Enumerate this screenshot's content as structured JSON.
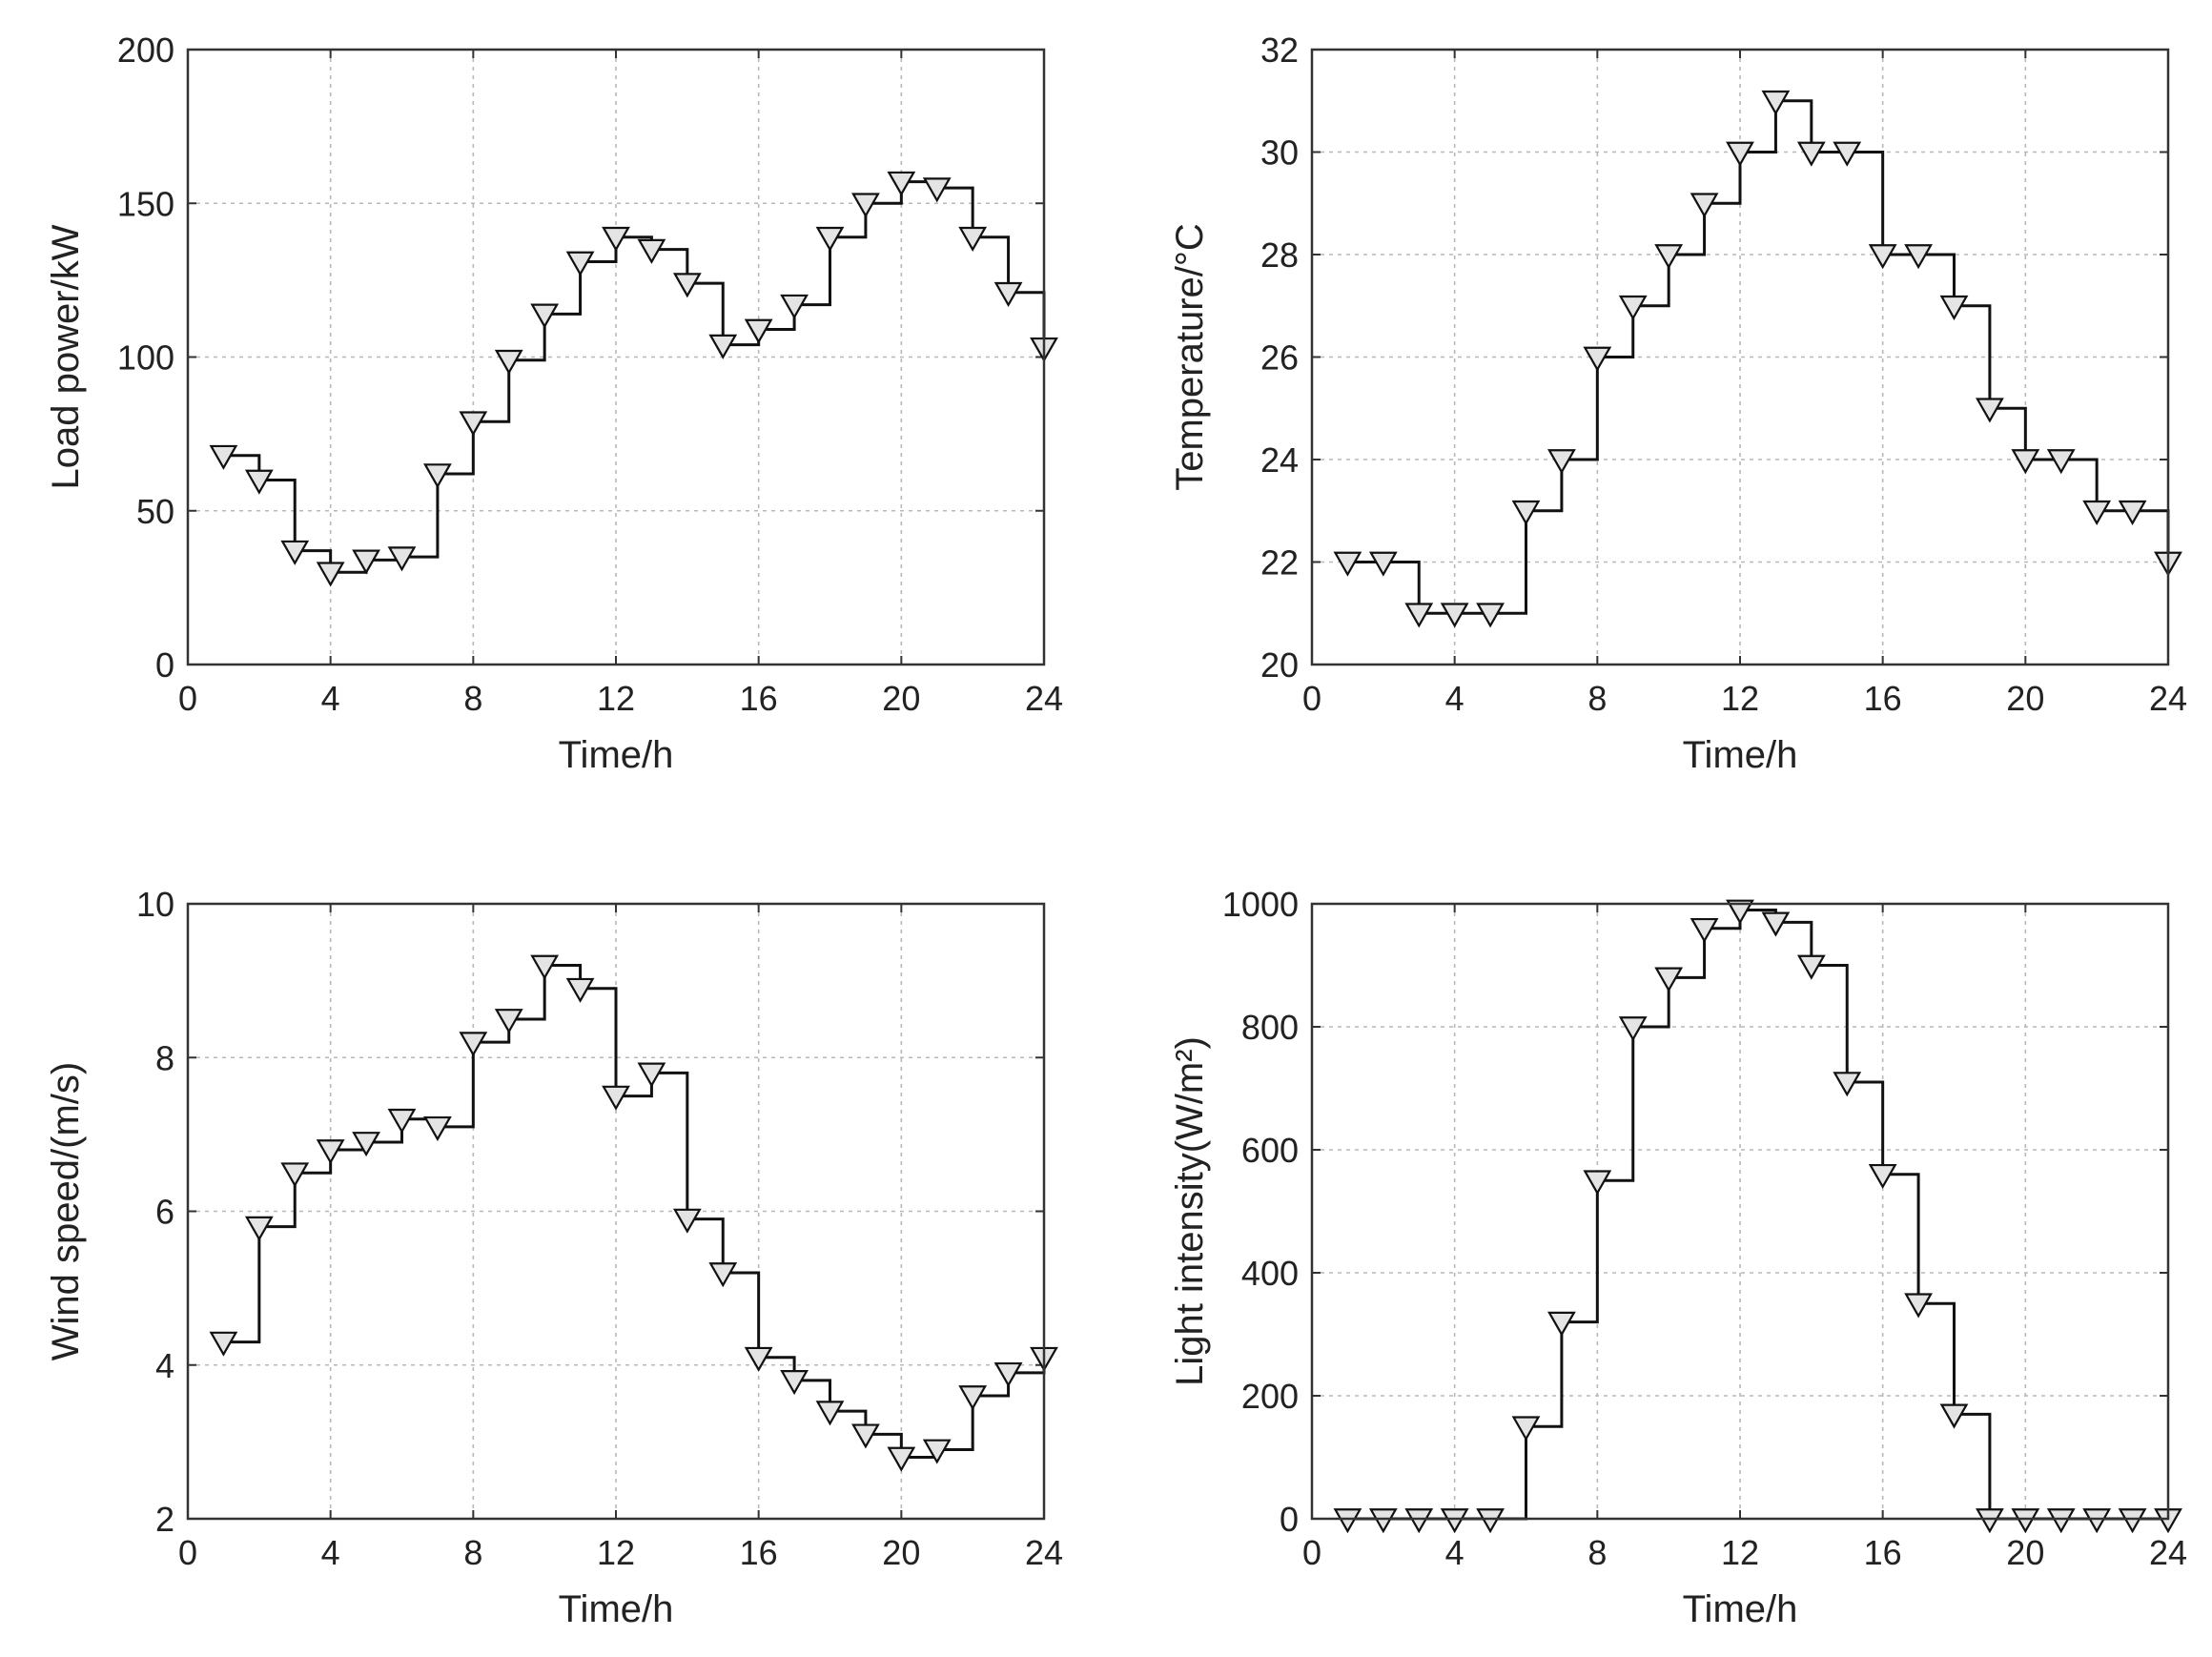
{
  "chart_data": [
    {
      "type": "line",
      "style": "stairs",
      "xlabel": "Time/h",
      "ylabel": "Load power/kW",
      "xlim": [
        0,
        24
      ],
      "ylim": [
        0,
        200
      ],
      "xticks": [
        0,
        4,
        8,
        12,
        16,
        20,
        24
      ],
      "yticks": [
        0,
        50,
        100,
        150,
        200
      ],
      "grid": true,
      "marker": "triangle-down",
      "x": [
        1,
        2,
        3,
        4,
        5,
        6,
        7,
        8,
        9,
        10,
        11,
        12,
        13,
        14,
        15,
        16,
        17,
        18,
        19,
        20,
        21,
        22,
        23,
        24
      ],
      "values": [
        68,
        60,
        37,
        30,
        34,
        35,
        62,
        79,
        99,
        114,
        131,
        139,
        135,
        124,
        104,
        109,
        117,
        139,
        150,
        157,
        155,
        139,
        121,
        103
      ]
    },
    {
      "type": "line",
      "style": "stairs",
      "xlabel": "Time/h",
      "ylabel": "Temperature/°C",
      "xlim": [
        0,
        24
      ],
      "ylim": [
        20,
        32
      ],
      "xticks": [
        0,
        4,
        8,
        12,
        16,
        20,
        24
      ],
      "yticks": [
        20,
        22,
        24,
        26,
        28,
        30,
        32
      ],
      "grid": true,
      "marker": "triangle-down",
      "x": [
        1,
        2,
        3,
        4,
        5,
        6,
        7,
        8,
        9,
        10,
        11,
        12,
        13,
        14,
        15,
        16,
        17,
        18,
        19,
        20,
        21,
        22,
        23,
        24
      ],
      "values": [
        22,
        22,
        21,
        21,
        21,
        23,
        24,
        26,
        27,
        28,
        29,
        30,
        31,
        30,
        30,
        28,
        28,
        27,
        25,
        24,
        24,
        23,
        23,
        22
      ]
    },
    {
      "type": "line",
      "style": "stairs",
      "xlabel": "Time/h",
      "ylabel": "Wind speed/(m/s)",
      "xlim": [
        0,
        24
      ],
      "ylim": [
        2,
        10
      ],
      "xticks": [
        0,
        4,
        8,
        12,
        16,
        20,
        24
      ],
      "yticks": [
        2,
        4,
        6,
        8,
        10
      ],
      "grid": true,
      "marker": "triangle-down",
      "x": [
        1,
        2,
        3,
        4,
        5,
        6,
        7,
        8,
        9,
        10,
        11,
        12,
        13,
        14,
        15,
        16,
        17,
        18,
        19,
        20,
        21,
        22,
        23,
        24
      ],
      "values": [
        4.3,
        5.8,
        6.5,
        6.8,
        6.9,
        7.2,
        7.1,
        8.2,
        8.5,
        9.2,
        8.9,
        7.5,
        7.8,
        5.9,
        5.2,
        4.1,
        3.8,
        3.4,
        3.1,
        2.8,
        2.9,
        3.6,
        3.9,
        4.1
      ]
    },
    {
      "type": "line",
      "style": "stairs",
      "xlabel": "Time/h",
      "ylabel": "Light intensity(W/m²)",
      "xlim": [
        0,
        24
      ],
      "ylim": [
        0,
        1000
      ],
      "xticks": [
        0,
        4,
        8,
        12,
        16,
        20,
        24
      ],
      "yticks": [
        0,
        200,
        400,
        600,
        800,
        1000
      ],
      "grid": true,
      "marker": "triangle-down",
      "x": [
        1,
        2,
        3,
        4,
        5,
        6,
        7,
        8,
        9,
        10,
        11,
        12,
        13,
        14,
        15,
        16,
        17,
        18,
        19,
        20,
        21,
        22,
        23,
        24
      ],
      "values": [
        0,
        0,
        0,
        0,
        0,
        150,
        320,
        550,
        800,
        880,
        960,
        990,
        970,
        900,
        710,
        560,
        350,
        170,
        0,
        0,
        0,
        0,
        0,
        0
      ]
    }
  ]
}
